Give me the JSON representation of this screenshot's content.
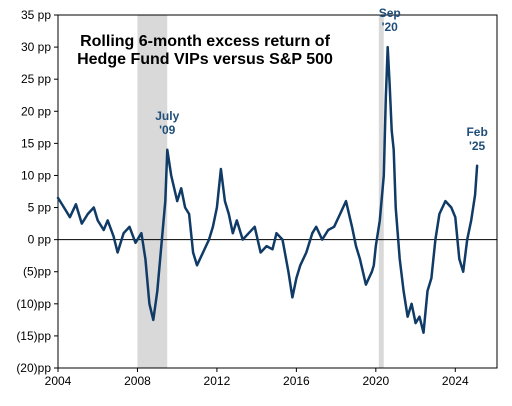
{
  "chart_data": {
    "type": "line",
    "title": [
      "Rolling 6-month excess return of",
      "Hedge Fund VIPs versus S&P 500"
    ],
    "xlim": [
      2004,
      2026.1
    ],
    "ylim": [
      -20,
      35
    ],
    "x_ticks": [
      2004,
      2008,
      2012,
      2016,
      2020,
      2024
    ],
    "x_tick_labels": [
      "2004",
      "2008",
      "2012",
      "2016",
      "2020",
      "2024"
    ],
    "y_ticks": [
      -20,
      -15,
      -10,
      -5,
      0,
      5,
      10,
      15,
      20,
      25,
      30,
      35
    ],
    "y_tick_labels": [
      "(20)pp",
      "(15)pp",
      "(10)pp",
      "(5)pp",
      "0 pp",
      "5 pp",
      "10 pp",
      "15 pp",
      "20 pp",
      "25 pp",
      "30 pp",
      "35 pp"
    ],
    "grid": false,
    "legend": "none",
    "shaded_periods": [
      [
        2008.0,
        2009.5
      ],
      [
        2020.15,
        2020.4
      ]
    ],
    "colors": {
      "line": "#0f3b66",
      "shade": "#d9d9d9",
      "annotation": "#1f4e79",
      "axis": "#000000"
    },
    "annotations": [
      {
        "lines": [
          "July",
          "'09"
        ],
        "x": 2009.5,
        "y": 14
      },
      {
        "lines": [
          "Sep",
          "'20"
        ],
        "x": 2020.7,
        "y": 30
      },
      {
        "lines": [
          "Feb",
          "'25"
        ],
        "x": 2025.1,
        "y": 11.5
      }
    ],
    "series": [
      {
        "x": [
          2004.0,
          2004.3,
          2004.6,
          2004.9,
          2005.2,
          2005.5,
          2005.8,
          2006.0,
          2006.3,
          2006.5,
          2006.8,
          2007.0,
          2007.3,
          2007.6,
          2007.9,
          2008.2,
          2008.4,
          2008.6,
          2008.8,
          2009.0,
          2009.2,
          2009.4,
          2009.5,
          2009.7,
          2010.0,
          2010.2,
          2010.4,
          2010.6,
          2010.8,
          2011.0,
          2011.3,
          2011.6,
          2011.8,
          2012.0,
          2012.2,
          2012.4,
          2012.6,
          2012.8,
          2013.0,
          2013.3,
          2013.6,
          2013.9,
          2014.2,
          2014.5,
          2014.8,
          2015.0,
          2015.3,
          2015.6,
          2015.8,
          2016.0,
          2016.2,
          2016.5,
          2016.8,
          2017.0,
          2017.3,
          2017.6,
          2017.9,
          2018.2,
          2018.5,
          2018.8,
          2019.0,
          2019.2,
          2019.5,
          2019.8,
          2019.9,
          2020.0,
          2020.2,
          2020.4,
          2020.5,
          2020.6,
          2020.7,
          2020.8,
          2020.9,
          2021.0,
          2021.2,
          2021.4,
          2021.6,
          2021.8,
          2022.0,
          2022.2,
          2022.4,
          2022.6,
          2022.8,
          2023.0,
          2023.2,
          2023.5,
          2023.8,
          2024.0,
          2024.2,
          2024.4,
          2024.6,
          2024.8,
          2025.0,
          2025.1
        ],
        "y": [
          6.5,
          5.0,
          3.5,
          5.5,
          2.5,
          4.0,
          5.0,
          3.0,
          1.5,
          3.0,
          0.5,
          -2.0,
          1.0,
          2.0,
          -0.5,
          1.0,
          -3.0,
          -10.0,
          -12.5,
          -8.0,
          -1.0,
          6.0,
          14.0,
          10.0,
          6.0,
          8.0,
          5.0,
          4.0,
          -2.0,
          -4.0,
          -2.0,
          0.0,
          2.0,
          5.0,
          11.0,
          6.0,
          4.0,
          1.0,
          3.0,
          0.0,
          1.0,
          2.0,
          -2.0,
          -1.0,
          -1.5,
          1.0,
          0.0,
          -5.0,
          -9.0,
          -6.0,
          -4.0,
          -2.0,
          1.0,
          2.0,
          0.0,
          1.5,
          2.0,
          4.0,
          6.0,
          2.0,
          -1.0,
          -3.0,
          -7.0,
          -5.0,
          -4.0,
          -1.0,
          3.0,
          10.0,
          22.0,
          30.0,
          24.0,
          17.0,
          14.0,
          5.0,
          -3.0,
          -8.0,
          -12.0,
          -10.0,
          -13.0,
          -12.0,
          -14.5,
          -8.0,
          -6.0,
          0.0,
          4.0,
          6.0,
          5.0,
          3.5,
          -3.0,
          -5.0,
          0.0,
          3.0,
          7.0,
          11.5
        ]
      }
    ]
  }
}
